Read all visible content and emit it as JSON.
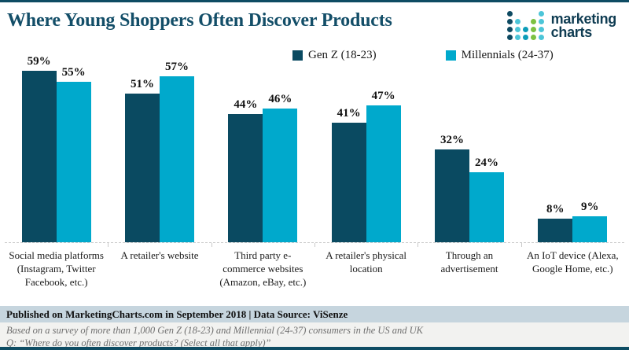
{
  "header": {
    "title": "Where Young Shoppers Often Discover Products",
    "logo": {
      "line1": "marketing",
      "line2": "charts",
      "dot_colors": {
        "navy": "#0e4a62",
        "cyan": "#4cc5d8",
        "teal": "#0d9db9",
        "green": "#7cc142"
      },
      "dot_pattern": [
        [
          "navy",
          null,
          null,
          null,
          "cyan"
        ],
        [
          "navy",
          "cyan",
          null,
          "green",
          "cyan"
        ],
        [
          "navy",
          "cyan",
          "teal",
          "green",
          "cyan"
        ],
        [
          "navy",
          "cyan",
          "teal",
          "green",
          "cyan"
        ]
      ]
    }
  },
  "chart_data": {
    "type": "bar",
    "title": "Where Young Shoppers Often Discover Products",
    "categories": [
      "Social media platforms (Instagram, Twitter Facebook, etc.)",
      "A retailer's website",
      "Third party e-commerce websites (Amazon, eBay, etc.)",
      "A retailer's physical location",
      "Through an advertisement",
      "An IoT device (Alexa, Google Home, etc.)"
    ],
    "series": [
      {
        "name": "Gen Z (18-23)",
        "color": "#0a4a61",
        "values": [
          59,
          51,
          44,
          41,
          32,
          8
        ]
      },
      {
        "name": "Millennials (24-37)",
        "color": "#00a9cc",
        "values": [
          55,
          57,
          46,
          47,
          24,
          9
        ]
      }
    ],
    "value_suffix": "%",
    "ylim": [
      0,
      60
    ],
    "grid": false,
    "legend_position": "top",
    "xlabel": "",
    "ylabel": ""
  },
  "footer": {
    "published": "Published on MarketingCharts.com in September 2018 | Data Source: ViSenze",
    "note1": "Based on a survey of more than 1,000 Gen Z (18-23) and Millennial (24-37) consumers in the US and UK",
    "note2": "Q: “Where do you often discover products? (Select all that apply)”"
  }
}
